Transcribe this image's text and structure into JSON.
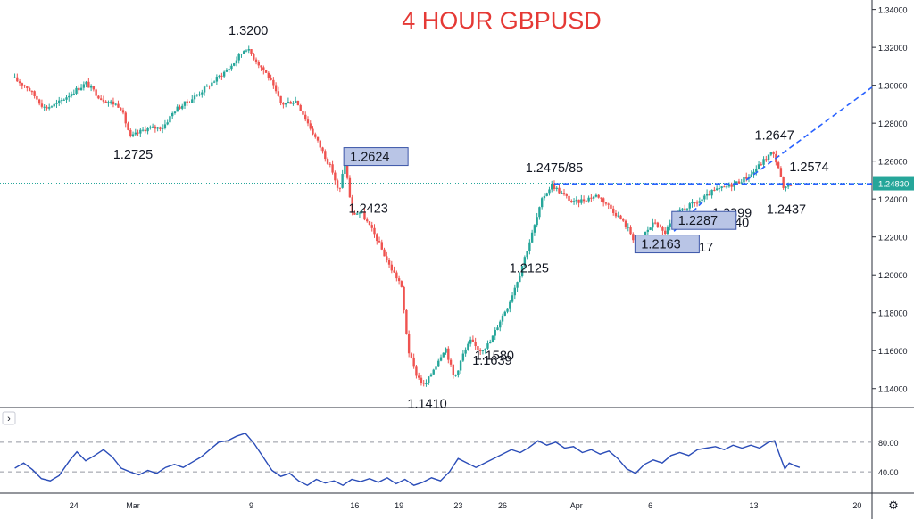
{
  "chart_data": {
    "type": "candlestick",
    "title": "4 HOUR GBPUSD",
    "instrument": "GBPUSD",
    "timeframe": "4 HOUR",
    "colors": {
      "up": "#26a69a",
      "down": "#ef5350",
      "title": "#e53935",
      "line": "#2962ff",
      "rsi": "#2b4db8",
      "box_fill": "#b9c5e6",
      "box_border": "#3b55a8",
      "price_tag": "#26a69a"
    },
    "ylim": [
      1.13,
      1.345
    ],
    "yticks": [
      "1.34000",
      "1.32000",
      "1.30000",
      "1.28000",
      "1.26000",
      "1.24000",
      "1.22000",
      "1.20000",
      "1.18000",
      "1.16000",
      "1.14000"
    ],
    "xticks": [
      {
        "label": "24",
        "day": 4
      },
      {
        "label": "Mar",
        "day": 8
      },
      {
        "label": "9",
        "day": 16
      },
      {
        "label": "16",
        "day": 23
      },
      {
        "label": "19",
        "day": 26
      },
      {
        "label": "23",
        "day": 30
      },
      {
        "label": "26",
        "day": 33
      },
      {
        "label": "Apr",
        "day": 38
      },
      {
        "label": "6",
        "day": 43
      },
      {
        "label": "13",
        "day": 50
      },
      {
        "label": "20",
        "day": 57
      }
    ],
    "current_price": "1.24830",
    "price_anchors": [
      [
        0,
        1.304
      ],
      [
        1.0,
        1.299
      ],
      [
        2.2,
        1.288
      ],
      [
        3.0,
        1.29
      ],
      [
        4.0,
        1.296
      ],
      [
        5.0,
        1.301
      ],
      [
        6.0,
        1.293
      ],
      [
        7.3,
        1.289
      ],
      [
        8.0,
        1.2725
      ],
      [
        9.0,
        1.277
      ],
      [
        10.2,
        1.278
      ],
      [
        11.0,
        1.287
      ],
      [
        12.0,
        1.292
      ],
      [
        13.3,
        1.3
      ],
      [
        14.8,
        1.31
      ],
      [
        15.8,
        1.32
      ],
      [
        16.5,
        1.313
      ],
      [
        17.3,
        1.305
      ],
      [
        18.2,
        1.29
      ],
      [
        19.2,
        1.292
      ],
      [
        20.0,
        1.28
      ],
      [
        21.0,
        1.265
      ],
      [
        21.7,
        1.254
      ],
      [
        22.1,
        1.2423
      ],
      [
        22.5,
        1.26
      ],
      [
        23.0,
        1.232
      ],
      [
        23.6,
        1.233
      ],
      [
        24.6,
        1.22
      ],
      [
        25.5,
        1.205
      ],
      [
        26.3,
        1.195
      ],
      [
        26.8,
        1.16
      ],
      [
        27.3,
        1.148
      ],
      [
        27.9,
        1.141
      ],
      [
        28.6,
        1.152
      ],
      [
        29.3,
        1.162
      ],
      [
        29.9,
        1.145
      ],
      [
        30.5,
        1.158
      ],
      [
        31.0,
        1.165
      ],
      [
        31.6,
        1.16
      ],
      [
        32.3,
        1.1639
      ],
      [
        33.0,
        1.176
      ],
      [
        33.6,
        1.185
      ],
      [
        34.3,
        1.2
      ],
      [
        34.8,
        1.2125
      ],
      [
        35.3,
        1.225
      ],
      [
        35.9,
        1.241
      ],
      [
        36.5,
        1.2475
      ],
      [
        37.3,
        1.242
      ],
      [
        38.0,
        1.238
      ],
      [
        38.8,
        1.24
      ],
      [
        39.6,
        1.242
      ],
      [
        40.4,
        1.236
      ],
      [
        41.1,
        1.23
      ],
      [
        41.7,
        1.224
      ],
      [
        42.2,
        1.2163
      ],
      [
        42.9,
        1.223
      ],
      [
        43.5,
        1.228
      ],
      [
        44.1,
        1.2217
      ],
      [
        44.7,
        1.2287
      ],
      [
        45.3,
        1.2347
      ],
      [
        46.0,
        1.237
      ],
      [
        46.7,
        1.2399
      ],
      [
        47.4,
        1.244
      ],
      [
        48.2,
        1.246
      ],
      [
        49.1,
        1.249
      ],
      [
        50.0,
        1.253
      ],
      [
        50.8,
        1.26
      ],
      [
        51.4,
        1.2647
      ],
      [
        51.8,
        1.258
      ],
      [
        52.2,
        1.2437
      ],
      [
        52.6,
        1.2483
      ]
    ],
    "rsi": {
      "levels": [
        80,
        40
      ],
      "ylim": [
        15,
        105
      ],
      "yticks": [
        "80.00",
        "40.00"
      ],
      "anchors": [
        [
          0,
          45
        ],
        [
          0.6,
          52
        ],
        [
          1.2,
          43
        ],
        [
          1.8,
          31
        ],
        [
          2.4,
          28
        ],
        [
          3.0,
          35
        ],
        [
          3.7,
          55
        ],
        [
          4.2,
          67
        ],
        [
          4.8,
          55
        ],
        [
          5.4,
          62
        ],
        [
          6.0,
          70
        ],
        [
          6.6,
          60
        ],
        [
          7.2,
          45
        ],
        [
          7.8,
          40
        ],
        [
          8.4,
          36
        ],
        [
          9.0,
          42
        ],
        [
          9.6,
          38
        ],
        [
          10.2,
          46
        ],
        [
          10.8,
          50
        ],
        [
          11.4,
          46
        ],
        [
          12.0,
          53
        ],
        [
          12.6,
          60
        ],
        [
          13.2,
          70
        ],
        [
          13.8,
          80
        ],
        [
          14.4,
          82
        ],
        [
          15.0,
          88
        ],
        [
          15.6,
          92
        ],
        [
          16.2,
          78
        ],
        [
          16.8,
          60
        ],
        [
          17.4,
          42
        ],
        [
          18.0,
          34
        ],
        [
          18.6,
          38
        ],
        [
          19.2,
          28
        ],
        [
          19.8,
          22
        ],
        [
          20.4,
          30
        ],
        [
          21.0,
          25
        ],
        [
          21.6,
          28
        ],
        [
          22.2,
          22
        ],
        [
          22.8,
          30
        ],
        [
          23.4,
          27
        ],
        [
          24.0,
          31
        ],
        [
          24.6,
          26
        ],
        [
          25.2,
          32
        ],
        [
          25.8,
          24
        ],
        [
          26.4,
          30
        ],
        [
          27.0,
          22
        ],
        [
          27.6,
          26
        ],
        [
          28.2,
          32
        ],
        [
          28.8,
          28
        ],
        [
          29.4,
          40
        ],
        [
          30.0,
          58
        ],
        [
          30.6,
          52
        ],
        [
          31.2,
          46
        ],
        [
          31.8,
          52
        ],
        [
          32.4,
          58
        ],
        [
          33.0,
          64
        ],
        [
          33.6,
          70
        ],
        [
          34.2,
          66
        ],
        [
          34.8,
          73
        ],
        [
          35.4,
          82
        ],
        [
          36.0,
          76
        ],
        [
          36.6,
          80
        ],
        [
          37.2,
          72
        ],
        [
          37.8,
          74
        ],
        [
          38.4,
          66
        ],
        [
          39.0,
          70
        ],
        [
          39.6,
          64
        ],
        [
          40.2,
          68
        ],
        [
          40.8,
          58
        ],
        [
          41.4,
          44
        ],
        [
          42.0,
          38
        ],
        [
          42.6,
          50
        ],
        [
          43.2,
          56
        ],
        [
          43.8,
          52
        ],
        [
          44.4,
          62
        ],
        [
          45.0,
          66
        ],
        [
          45.6,
          62
        ],
        [
          46.2,
          70
        ],
        [
          46.8,
          72
        ],
        [
          47.4,
          74
        ],
        [
          48.0,
          70
        ],
        [
          48.6,
          76
        ],
        [
          49.2,
          72
        ],
        [
          49.8,
          76
        ],
        [
          50.4,
          72
        ],
        [
          51.0,
          80
        ],
        [
          51.4,
          82
        ],
        [
          51.8,
          60
        ],
        [
          52.1,
          44
        ],
        [
          52.4,
          52
        ],
        [
          52.8,
          48
        ],
        [
          53.1,
          46
        ]
      ]
    },
    "annotations": [
      {
        "text": "1.3200",
        "day": 15.8,
        "price": 1.32,
        "pos": "above"
      },
      {
        "text": "1.2725",
        "day": 8.0,
        "price": 1.2725,
        "pos": "below"
      },
      {
        "text": "1.2423",
        "day": 22.1,
        "price": 1.2423,
        "pos": "below-right"
      },
      {
        "text": "1.1410",
        "day": 27.9,
        "price": 1.141,
        "pos": "below"
      },
      {
        "text": "1.1580",
        "day": 30.5,
        "price": 1.158,
        "pos": "right"
      },
      {
        "text": "1.1639",
        "day": 32.3,
        "price": 1.1639,
        "pos": "below"
      },
      {
        "text": "1.2125",
        "day": 34.8,
        "price": 1.2125,
        "pos": "below"
      },
      {
        "text": "1.2475/85",
        "day": 36.5,
        "price": 1.2475,
        "pos": "above"
      },
      {
        "text": "1.2217",
        "day": 44.1,
        "price": 1.2217,
        "pos": "below-right"
      },
      {
        "text": "1.2347/40",
        "day": 45.3,
        "price": 1.2347,
        "pos": "below-right"
      },
      {
        "text": "1.2399",
        "day": 46.7,
        "price": 1.2399,
        "pos": "below-right"
      },
      {
        "text": "1.2647",
        "day": 51.4,
        "price": 1.2647,
        "pos": "above"
      },
      {
        "text": "1.2574",
        "day": 51.8,
        "price": 1.2574,
        "pos": "right"
      },
      {
        "text": "1.2437",
        "day": 52.2,
        "price": 1.2437,
        "pos": "below"
      }
    ],
    "boxes": [
      {
        "text": "1.2624",
        "day": 22.5,
        "price": 1.2624
      },
      {
        "text": "1.2287",
        "day": 44.7,
        "price": 1.2287
      },
      {
        "text": "1.2163",
        "day": 42.2,
        "price": 1.2163
      }
    ],
    "lines": [
      {
        "style": "dashed",
        "from": [
          36.5,
          1.248
        ],
        "to": [
          58,
          1.248
        ]
      },
      {
        "style": "dashed",
        "from": [
          49.5,
          1.25
        ],
        "to": [
          58,
          1.299
        ]
      },
      {
        "style": "dashed",
        "from": [
          44.6,
          1.223
        ],
        "to": [
          46.7,
          1.2399
        ]
      }
    ]
  },
  "ui": {
    "collapse_label": "›",
    "settings_icon": "gear-icon"
  }
}
